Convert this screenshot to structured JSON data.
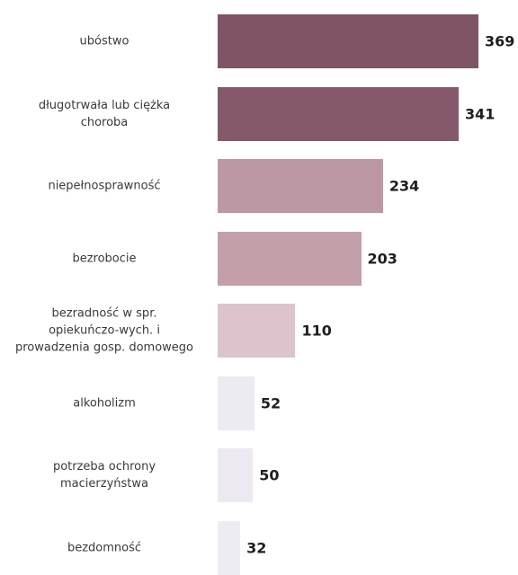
{
  "chart_data": {
    "type": "bar",
    "orientation": "horizontal",
    "title": "",
    "xlabel": "",
    "ylabel": "",
    "categories": [
      "ubóstwo",
      "długotrwała lub ciężka choroba",
      "niepełnosprawność",
      "bezrobocie",
      "bezradność w spr. opiekuńczo-wych. i prowadzenia gosp. domowego",
      "alkoholizm",
      "potrzeba ochrony macierzyństwa",
      "bezdomność"
    ],
    "category_lines": [
      [
        "ubóstwo"
      ],
      [
        "długotrwała lub ciężka",
        "choroba"
      ],
      [
        "niepełnosprawność"
      ],
      [
        "bezrobocie"
      ],
      [
        "bezradność w spr.",
        "opiekuńczo-wych. i",
        "prowadzenia gosp. domowego"
      ],
      [
        "alkoholizm"
      ],
      [
        "potrzeba ochrony",
        "macierzyństwa"
      ],
      [
        "bezdomność"
      ]
    ],
    "values": [
      369,
      341,
      234,
      203,
      110,
      52,
      50,
      32
    ],
    "colors": [
      "#7e5466",
      "#85596b",
      "#bc98a4",
      "#c29fa9",
      "#ddc3cb",
      "#ecebf1",
      "#eceaf0",
      "#edecf2"
    ],
    "xlim": [
      0,
      369
    ],
    "grid": false,
    "legend": "none"
  }
}
